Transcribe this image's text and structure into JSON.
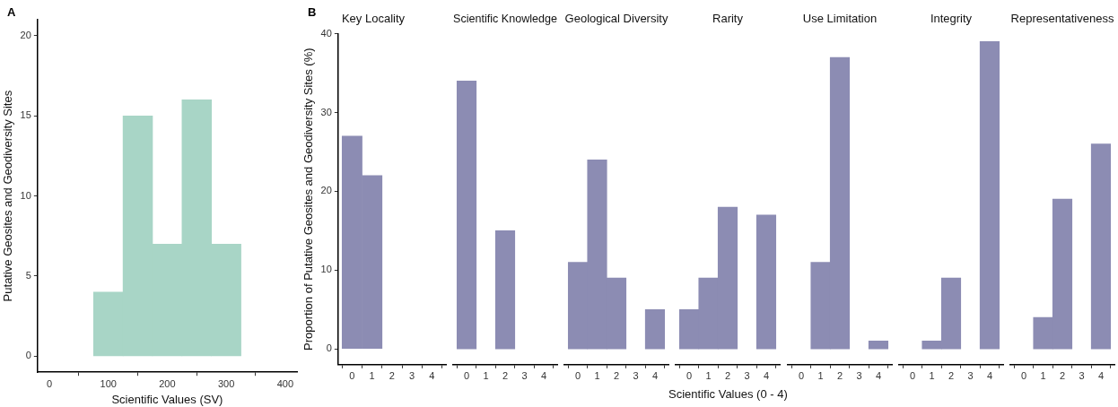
{
  "chart_data": [
    {
      "type": "histogram",
      "annotations": [
        "A"
      ],
      "xlabel": "Scientific Values (SV)",
      "ylabel": "Putative Geosites and Geodiversity Sites",
      "bins": [
        75,
        125,
        175,
        225,
        275,
        325
      ],
      "values": [
        4,
        15,
        7,
        16,
        7
      ],
      "color": "#a8d5c6",
      "xlim": [
        -20,
        420
      ],
      "xticks": [
        0,
        100,
        200,
        300,
        400
      ],
      "ylim": [
        -1,
        21
      ],
      "yticks": [
        0,
        5,
        10,
        15,
        20
      ],
      "grid": false
    },
    {
      "type": "histogram",
      "title": "Key Locality",
      "annotations": [
        "B"
      ],
      "ylabel": "Proportion of Putative Geosites and Geodiversity Sites (%)",
      "bins": [
        -0.5,
        0.5,
        1.5,
        2.5,
        3.5,
        4.5
      ],
      "values": [
        27,
        22,
        0,
        0,
        0
      ],
      "color": "#8c8cb3",
      "xlim": [
        -0.7,
        4.7
      ],
      "xticks": [
        0,
        1,
        2,
        3,
        4
      ],
      "ylim": [
        -2,
        40
      ],
      "yticks": [
        0,
        10,
        20,
        30,
        40
      ],
      "grid": false
    },
    {
      "type": "histogram",
      "title": "Scientific Knowledge",
      "bins": [
        -0.5,
        0.5,
        1.5,
        2.5,
        3.5,
        4.5
      ],
      "values": [
        34,
        0,
        15,
        0,
        0
      ],
      "color": "#8c8cb3",
      "xlim": [
        -0.7,
        4.7
      ],
      "xticks": [
        0,
        1,
        2,
        3,
        4
      ],
      "ylim": [
        -2,
        40
      ],
      "yticks": [
        0,
        10,
        20,
        30,
        40
      ],
      "tick_labels": "x",
      "grid": false
    },
    {
      "type": "histogram",
      "title": "Geological Diversity",
      "bins": [
        -0.5,
        0.5,
        1.5,
        2.5,
        3.5,
        4.5
      ],
      "values": [
        11,
        24,
        9,
        0,
        5
      ],
      "color": "#8c8cb3",
      "xlim": [
        -0.7,
        4.7
      ],
      "xticks": [
        0,
        1,
        2,
        3,
        4
      ],
      "ylim": [
        -2,
        40
      ],
      "yticks": [
        0,
        10,
        20,
        30,
        40
      ],
      "tick_labels": "x",
      "grid": false
    },
    {
      "type": "histogram",
      "title": "Rarity",
      "xlabel": "Scientific Values (0 - 4)",
      "bins": [
        -0.5,
        0.5,
        1.5,
        2.5,
        3.5,
        4.5
      ],
      "values": [
        5,
        9,
        18,
        0,
        17
      ],
      "color": "#8c8cb3",
      "xlim": [
        -0.7,
        4.7
      ],
      "xticks": [
        0,
        1,
        2,
        3,
        4
      ],
      "ylim": [
        -2,
        40
      ],
      "yticks": [
        0,
        10,
        20,
        30,
        40
      ],
      "tick_labels": "x",
      "grid": false
    },
    {
      "type": "histogram",
      "title": "Use Limitation",
      "bins": [
        -0.5,
        0.5,
        1.5,
        2.5,
        3.5,
        4.5
      ],
      "values": [
        0,
        11,
        37,
        0,
        1
      ],
      "color": "#8c8cb3",
      "xlim": [
        -0.7,
        4.7
      ],
      "xticks": [
        0,
        1,
        2,
        3,
        4
      ],
      "ylim": [
        -2,
        40
      ],
      "yticks": [
        0,
        10,
        20,
        30,
        40
      ],
      "tick_labels": "x",
      "grid": false
    },
    {
      "type": "histogram",
      "title": "Integrity",
      "bins": [
        -0.5,
        0.5,
        1.5,
        2.5,
        3.5,
        4.5
      ],
      "values": [
        0,
        1,
        9,
        0,
        39
      ],
      "color": "#8c8cb3",
      "xlim": [
        -0.7,
        4.7
      ],
      "xticks": [
        0,
        1,
        2,
        3,
        4
      ],
      "ylim": [
        -2,
        40
      ],
      "yticks": [
        0,
        10,
        20,
        30,
        40
      ],
      "tick_labels": "x",
      "grid": false
    },
    {
      "type": "histogram",
      "title": "Representativeness",
      "bins": [
        -0.5,
        0.5,
        1.5,
        2.5,
        3.5,
        4.5
      ],
      "values": [
        0,
        4,
        19,
        0,
        26
      ],
      "color": "#8c8cb3",
      "xlim": [
        -0.7,
        4.7
      ],
      "xticks": [
        0,
        1,
        2,
        3,
        4
      ],
      "ylim": [
        -2,
        40
      ],
      "yticks": [
        0,
        10,
        20,
        30,
        40
      ],
      "tick_labels": "x",
      "grid": false
    }
  ]
}
